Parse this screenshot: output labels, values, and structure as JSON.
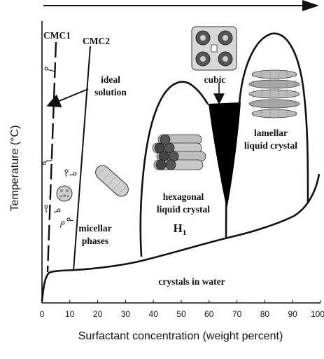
{
  "diagram": {
    "axes": {
      "x_label": "Surfactant concentration (weight percent)",
      "y_label": "Temperature (°C)",
      "x_ticks": [
        "0",
        "10",
        "20",
        "30",
        "40",
        "50",
        "60",
        "70",
        "80",
        "90",
        "100"
      ]
    },
    "labels": {
      "cmc1": "CMC1",
      "cmc2": "CMC2",
      "ideal_solution_line1": "ideal",
      "ideal_solution_line2": "solution",
      "cubic": "cubic",
      "lamellar_line1": "lamellar",
      "lamellar_line2": "liquid crystal",
      "hexagonal_line1": "hexagonal",
      "hexagonal_line2": "liquid crystal",
      "h1": "H",
      "h1_sub": "1",
      "micellar_line1": "micellar",
      "micellar_line2": "phases",
      "crystals": "crystals in water"
    },
    "colors": {
      "ink": "#111111",
      "cubic_fill": "#000000",
      "background": "#ffffff"
    }
  }
}
